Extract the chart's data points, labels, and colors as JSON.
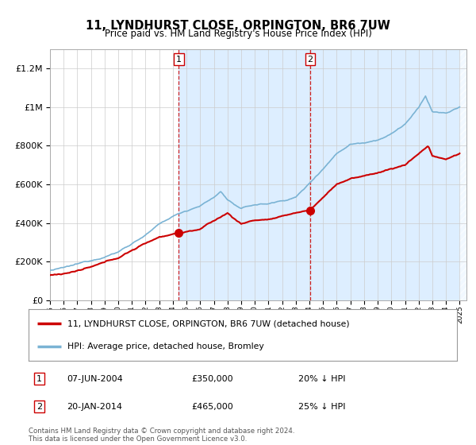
{
  "title": "11, LYNDHURST CLOSE, ORPINGTON, BR6 7UW",
  "subtitle": "Price paid vs. HM Land Registry's House Price Index (HPI)",
  "legend_property": "11, LYNDHURST CLOSE, ORPINGTON, BR6 7UW (detached house)",
  "legend_hpi": "HPI: Average price, detached house, Bromley",
  "transaction1_date": "07-JUN-2004",
  "transaction1_price": "£350,000",
  "transaction1_hpi": "20% ↓ HPI",
  "transaction1_year": 2004.44,
  "transaction1_value": 350000,
  "transaction2_date": "20-JAN-2014",
  "transaction2_price": "£465,000",
  "transaction2_hpi": "25% ↓ HPI",
  "transaction2_year": 2014.05,
  "transaction2_value": 465000,
  "footnote": "Contains HM Land Registry data © Crown copyright and database right 2024.\nThis data is licensed under the Open Government Licence v3.0.",
  "hpi_color": "#7ab3d4",
  "property_color": "#cc0000",
  "shaded_color": "#ddeeff",
  "vline_color": "#cc0000",
  "background_color": "#ffffff",
  "ylim_max": 1300000,
  "xlim_start": 1995,
  "xlim_end": 2025.5
}
